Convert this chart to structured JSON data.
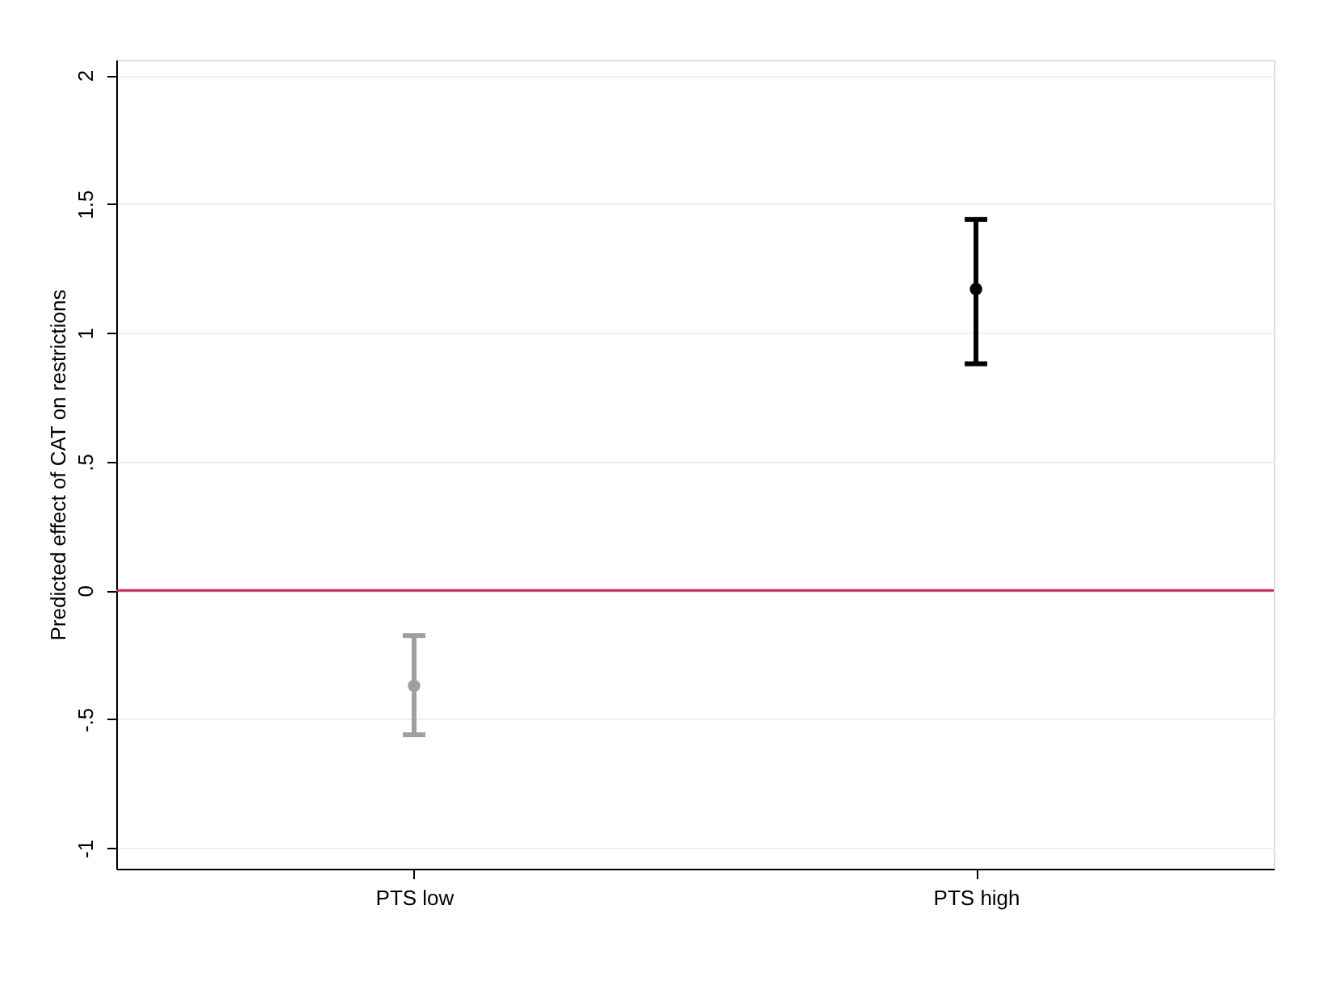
{
  "chart_data": {
    "type": "scatter",
    "categories": [
      "PTS low",
      "PTS high"
    ],
    "values": [
      -0.37,
      1.17
    ],
    "errors": [
      [
        -0.56,
        -0.175
      ],
      [
        0.88,
        1.44
      ]
    ],
    "colors": [
      "#a0a0a0",
      "#000000"
    ],
    "ylabel": "Predicted effect of CAT on restrictions",
    "ylim": [
      -1.08,
      2.06
    ],
    "yticks": [
      {
        "value": -1,
        "label": "-1"
      },
      {
        "value": -0.5,
        "label": "-.5"
      },
      0,
      {
        "value": 0.5,
        "label": ".5"
      },
      1,
      {
        "value": 1.5,
        "label": "1.5"
      },
      2
    ],
    "ref_lines": [
      {
        "axis": "y",
        "value": 0,
        "color": "#c8285a"
      }
    ],
    "grid": "y",
    "marker": "circle"
  }
}
